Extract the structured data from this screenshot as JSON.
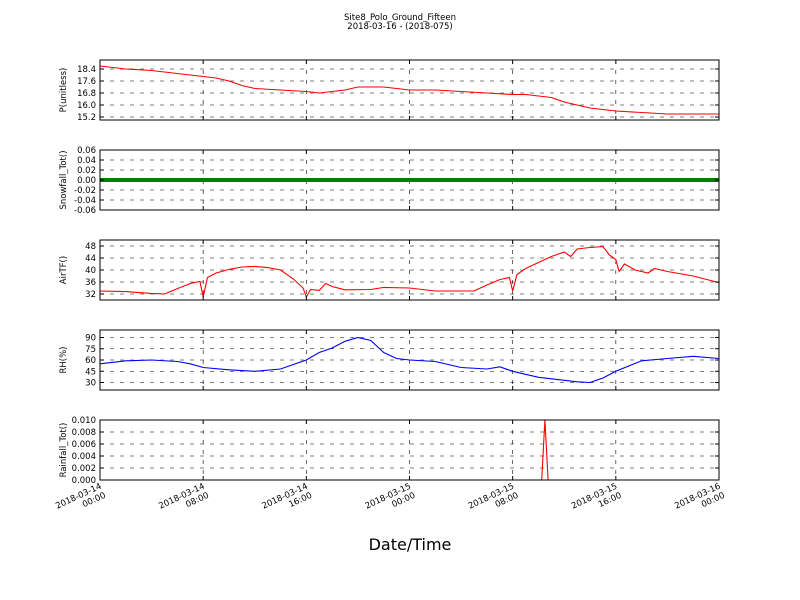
{
  "title": "Site8_Polo_Ground_Fifteen",
  "subtitle": "2018-03-16 - (2018-075)",
  "chart_data": {
    "type": "line",
    "xlabel": "Date/Time",
    "x_ticks": [
      {
        "line1": "2018-03-14",
        "line2": "00:00",
        "t": "2018-03-14T00:00"
      },
      {
        "line1": "2018-03-14",
        "line2": "08:00",
        "t": "2018-03-14T08:00"
      },
      {
        "line1": "2018-03-14",
        "line2": "16:00",
        "t": "2018-03-14T16:00"
      },
      {
        "line1": "2018-03-15",
        "line2": "00:00",
        "t": "2018-03-15T00:00"
      },
      {
        "line1": "2018-03-15",
        "line2": "08:00",
        "t": "2018-03-15T08:00"
      },
      {
        "line1": "2018-03-15",
        "line2": "16:00",
        "t": "2018-03-15T16:00"
      },
      {
        "line1": "2018-03-16",
        "line2": "00:00",
        "t": "2018-03-16T00:00"
      }
    ],
    "xlim": [
      "2018-03-14T00:00",
      "2018-03-16T00:00"
    ],
    "grid": true,
    "panels": [
      {
        "ylabel": "P(unitless)",
        "ylim": [
          15.0,
          19.0
        ],
        "ytick_labels": [
          "15.2",
          "16.0",
          "16.8",
          "17.6",
          "18.4"
        ],
        "ytick_values": [
          15.2,
          16.0,
          16.8,
          17.6,
          18.4
        ],
        "color": "#ff0000",
        "points": [
          [
            "2018-03-14T00:00",
            18.6
          ],
          [
            "2018-03-14T02:00",
            18.4
          ],
          [
            "2018-03-14T04:00",
            18.3
          ],
          [
            "2018-03-14T06:00",
            18.1
          ],
          [
            "2018-03-14T08:00",
            17.9
          ],
          [
            "2018-03-14T09:00",
            17.8
          ],
          [
            "2018-03-14T10:00",
            17.6
          ],
          [
            "2018-03-14T11:00",
            17.3
          ],
          [
            "2018-03-14T12:00",
            17.1
          ],
          [
            "2018-03-14T14:00",
            17.0
          ],
          [
            "2018-03-14T16:00",
            16.9
          ],
          [
            "2018-03-14T17:00",
            16.8
          ],
          [
            "2018-03-14T18:00",
            16.9
          ],
          [
            "2018-03-14T19:00",
            17.0
          ],
          [
            "2018-03-14T20:00",
            17.2
          ],
          [
            "2018-03-14T22:00",
            17.2
          ],
          [
            "2018-03-15T00:00",
            17.0
          ],
          [
            "2018-03-15T02:00",
            17.0
          ],
          [
            "2018-03-15T04:00",
            16.9
          ],
          [
            "2018-03-15T06:00",
            16.8
          ],
          [
            "2018-03-15T08:00",
            16.7
          ],
          [
            "2018-03-15T09:00",
            16.7
          ],
          [
            "2018-03-15T10:00",
            16.6
          ],
          [
            "2018-03-15T11:00",
            16.5
          ],
          [
            "2018-03-15T12:00",
            16.2
          ],
          [
            "2018-03-15T13:00",
            16.0
          ],
          [
            "2018-03-15T14:00",
            15.8
          ],
          [
            "2018-03-15T16:00",
            15.6
          ],
          [
            "2018-03-15T18:00",
            15.5
          ],
          [
            "2018-03-15T20:00",
            15.4
          ],
          [
            "2018-03-15T22:00",
            15.4
          ],
          [
            "2018-03-16T00:00",
            15.4
          ]
        ]
      },
      {
        "ylabel": "Snowfall_Tot()",
        "ylim": [
          -0.06,
          0.06
        ],
        "ytick_labels": [
          "-0.06",
          "-0.04",
          "-0.02",
          "0.00",
          "0.02",
          "0.04",
          "0.06"
        ],
        "ytick_values": [
          -0.06,
          -0.04,
          -0.02,
          0.0,
          0.02,
          0.04,
          0.06
        ],
        "color": "#008000",
        "style": "thick",
        "points": [
          [
            "2018-03-14T00:00",
            0.0
          ],
          [
            "2018-03-16T00:00",
            0.0
          ]
        ]
      },
      {
        "ylabel": "AirTF()",
        "ylim": [
          30.0,
          50.0
        ],
        "ytick_labels": [
          "32",
          "36",
          "40",
          "44",
          "48"
        ],
        "ytick_values": [
          32,
          36,
          40,
          44,
          48
        ],
        "color": "#ff0000",
        "points": [
          [
            "2018-03-14T00:00",
            33.0
          ],
          [
            "2018-03-14T02:00",
            32.8
          ],
          [
            "2018-03-14T04:00",
            32.2
          ],
          [
            "2018-03-14T05:00",
            32.0
          ],
          [
            "2018-03-14T06:00",
            33.8
          ],
          [
            "2018-03-14T07:00",
            35.5
          ],
          [
            "2018-03-14T07:45",
            36.2
          ],
          [
            "2018-03-14T08:00",
            31.0
          ],
          [
            "2018-03-14T08:20",
            37.5
          ],
          [
            "2018-03-14T09:00",
            39.0
          ],
          [
            "2018-03-14T10:00",
            40.2
          ],
          [
            "2018-03-14T11:00",
            41.0
          ],
          [
            "2018-03-14T12:00",
            41.2
          ],
          [
            "2018-03-14T13:00",
            40.8
          ],
          [
            "2018-03-14T14:00",
            40.0
          ],
          [
            "2018-03-14T15:00",
            37.0
          ],
          [
            "2018-03-14T15:45",
            34.0
          ],
          [
            "2018-03-14T16:00",
            31.0
          ],
          [
            "2018-03-14T16:20",
            33.5
          ],
          [
            "2018-03-14T17:00",
            33.2
          ],
          [
            "2018-03-14T17:30",
            35.5
          ],
          [
            "2018-03-14T18:00",
            34.5
          ],
          [
            "2018-03-14T19:00",
            33.4
          ],
          [
            "2018-03-14T21:00",
            33.5
          ],
          [
            "2018-03-14T22:00",
            34.2
          ],
          [
            "2018-03-15T00:00",
            34.0
          ],
          [
            "2018-03-15T01:00",
            33.5
          ],
          [
            "2018-03-15T02:00",
            33.0
          ],
          [
            "2018-03-15T04:00",
            33.0
          ],
          [
            "2018-03-15T05:00",
            33.0
          ],
          [
            "2018-03-15T06:00",
            35.0
          ],
          [
            "2018-03-15T07:00",
            36.8
          ],
          [
            "2018-03-15T07:45",
            37.5
          ],
          [
            "2018-03-15T08:00",
            33.0
          ],
          [
            "2018-03-15T08:20",
            38.5
          ],
          [
            "2018-03-15T09:00",
            40.5
          ],
          [
            "2018-03-15T10:00",
            42.5
          ],
          [
            "2018-03-15T11:00",
            44.5
          ],
          [
            "2018-03-15T12:00",
            46.0
          ],
          [
            "2018-03-15T12:30",
            44.5
          ],
          [
            "2018-03-15T13:00",
            47.0
          ],
          [
            "2018-03-15T14:00",
            47.5
          ],
          [
            "2018-03-15T15:00",
            47.8
          ],
          [
            "2018-03-15T15:30",
            45.0
          ],
          [
            "2018-03-15T16:00",
            43.5
          ],
          [
            "2018-03-15T16:15",
            39.5
          ],
          [
            "2018-03-15T16:40",
            42.0
          ],
          [
            "2018-03-15T17:30",
            40.0
          ],
          [
            "2018-03-15T18:30",
            39.0
          ],
          [
            "2018-03-15T19:00",
            40.5
          ],
          [
            "2018-03-15T20:00",
            39.5
          ],
          [
            "2018-03-15T22:00",
            38.0
          ],
          [
            "2018-03-16T00:00",
            35.8
          ]
        ]
      },
      {
        "ylabel": "RH(%)",
        "ylim": [
          20,
          100
        ],
        "ytick_labels": [
          "30",
          "45",
          "60",
          "75",
          "90"
        ],
        "ytick_values": [
          30,
          45,
          60,
          75,
          90
        ],
        "color": "#0000ff",
        "points": [
          [
            "2018-03-14T00:00",
            55
          ],
          [
            "2018-03-14T02:00",
            59
          ],
          [
            "2018-03-14T04:00",
            60
          ],
          [
            "2018-03-14T06:00",
            58
          ],
          [
            "2018-03-14T07:00",
            55
          ],
          [
            "2018-03-14T08:00",
            50
          ],
          [
            "2018-03-14T10:00",
            47
          ],
          [
            "2018-03-14T12:00",
            45
          ],
          [
            "2018-03-14T14:00",
            48
          ],
          [
            "2018-03-14T15:00",
            54
          ],
          [
            "2018-03-14T16:00",
            60
          ],
          [
            "2018-03-14T17:00",
            70
          ],
          [
            "2018-03-14T18:00",
            76
          ],
          [
            "2018-03-14T19:00",
            85
          ],
          [
            "2018-03-14T20:00",
            90
          ],
          [
            "2018-03-14T21:00",
            86
          ],
          [
            "2018-03-14T22:00",
            70
          ],
          [
            "2018-03-14T23:00",
            62
          ],
          [
            "2018-03-15T00:00",
            60
          ],
          [
            "2018-03-15T02:00",
            58
          ],
          [
            "2018-03-15T04:00",
            50
          ],
          [
            "2018-03-15T06:00",
            48
          ],
          [
            "2018-03-15T07:00",
            51
          ],
          [
            "2018-03-15T08:00",
            45
          ],
          [
            "2018-03-15T10:00",
            37
          ],
          [
            "2018-03-15T11:00",
            35
          ],
          [
            "2018-03-15T12:00",
            33
          ],
          [
            "2018-03-15T13:00",
            31
          ],
          [
            "2018-03-15T14:00",
            30
          ],
          [
            "2018-03-15T15:00",
            36
          ],
          [
            "2018-03-15T16:00",
            45
          ],
          [
            "2018-03-15T17:00",
            52
          ],
          [
            "2018-03-15T18:00",
            59
          ],
          [
            "2018-03-15T20:00",
            62
          ],
          [
            "2018-03-15T22:00",
            65
          ],
          [
            "2018-03-16T00:00",
            62
          ]
        ]
      },
      {
        "ylabel": "Rainfall_Tot()",
        "ylim": [
          0.0,
          0.01
        ],
        "ytick_labels": [
          "0.000",
          "0.002",
          "0.004",
          "0.006",
          "0.008",
          "0.010"
        ],
        "ytick_values": [
          0.0,
          0.002,
          0.004,
          0.006,
          0.008,
          0.01
        ],
        "color": "#ff0000",
        "points": [
          [
            "2018-03-14T00:00",
            0.0
          ],
          [
            "2018-03-15T10:15",
            0.0
          ],
          [
            "2018-03-15T10:30",
            0.01
          ],
          [
            "2018-03-15T10:45",
            0.0
          ],
          [
            "2018-03-16T00:00",
            0.0
          ]
        ]
      }
    ]
  }
}
